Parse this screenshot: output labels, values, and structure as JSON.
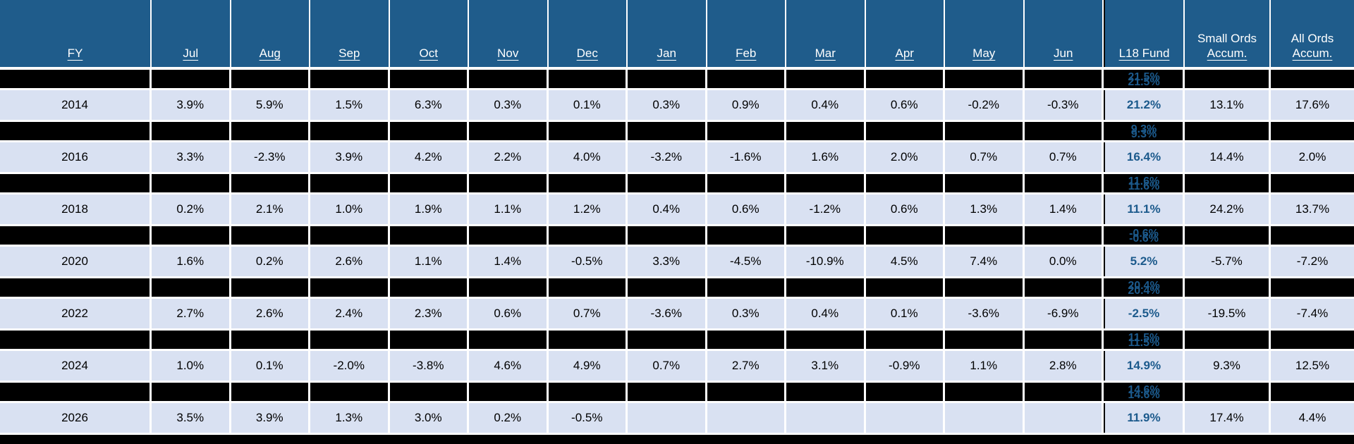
{
  "colors": {
    "header_bg": "#1F5C8B",
    "data_row_bg": "#D9E1F2",
    "accent_text": "#1C5A8C",
    "redaction": "#000000",
    "grid_gap": "#ffffff"
  },
  "chart_data": {
    "type": "table",
    "title": "",
    "columns": [
      {
        "id": "fy",
        "lines": [
          "FY"
        ]
      },
      {
        "id": "jul",
        "lines": [
          "Jul"
        ]
      },
      {
        "id": "aug",
        "lines": [
          "Aug"
        ]
      },
      {
        "id": "sep",
        "lines": [
          "Sep"
        ]
      },
      {
        "id": "oct",
        "lines": [
          "Oct"
        ]
      },
      {
        "id": "nov",
        "lines": [
          "Nov"
        ]
      },
      {
        "id": "dec",
        "lines": [
          "Dec"
        ]
      },
      {
        "id": "jan",
        "lines": [
          "Jan"
        ]
      },
      {
        "id": "feb",
        "lines": [
          "Feb"
        ]
      },
      {
        "id": "mar",
        "lines": [
          "Mar"
        ]
      },
      {
        "id": "apr",
        "lines": [
          "Apr"
        ]
      },
      {
        "id": "may",
        "lines": [
          "May"
        ]
      },
      {
        "id": "jun",
        "lines": [
          "Jun"
        ]
      },
      {
        "id": "l18",
        "lines": [
          "L18 Fund"
        ]
      },
      {
        "id": "small",
        "lines": [
          "Small Ords",
          "Accum."
        ]
      },
      {
        "id": "all",
        "lines": [
          "All Ords",
          "Accum."
        ]
      }
    ],
    "rows": [
      {
        "type": "redacted",
        "l18_obscured": "21.5%"
      },
      {
        "type": "data",
        "fy": "2014",
        "months": [
          "3.9%",
          "5.9%",
          "1.5%",
          "6.3%",
          "0.3%",
          "0.1%",
          "0.3%",
          "0.9%",
          "0.4%",
          "0.6%",
          "-0.2%",
          "-0.3%"
        ],
        "l18": "21.2%",
        "small_ords": "13.1%",
        "all_ords": "17.6%"
      },
      {
        "type": "redacted",
        "l18_obscured": "9.3%"
      },
      {
        "type": "data",
        "fy": "2016",
        "months": [
          "3.3%",
          "-2.3%",
          "3.9%",
          "4.2%",
          "2.2%",
          "4.0%",
          "-3.2%",
          "-1.6%",
          "1.6%",
          "2.0%",
          "0.7%",
          "0.7%"
        ],
        "l18": "16.4%",
        "small_ords": "14.4%",
        "all_ords": "2.0%"
      },
      {
        "type": "redacted",
        "l18_obscured": "11.6%"
      },
      {
        "type": "data",
        "fy": "2018",
        "months": [
          "0.2%",
          "2.1%",
          "1.0%",
          "1.9%",
          "1.1%",
          "1.2%",
          "0.4%",
          "0.6%",
          "-1.2%",
          "0.6%",
          "1.3%",
          "1.4%"
        ],
        "l18": "11.1%",
        "small_ords": "24.2%",
        "all_ords": "13.7%"
      },
      {
        "type": "redacted",
        "l18_obscured": "-0.6%"
      },
      {
        "type": "data",
        "fy": "2020",
        "months": [
          "1.6%",
          "0.2%",
          "2.6%",
          "1.1%",
          "1.4%",
          "-0.5%",
          "3.3%",
          "-4.5%",
          "-10.9%",
          "4.5%",
          "7.4%",
          "0.0%"
        ],
        "l18": "5.2%",
        "small_ords": "-5.7%",
        "all_ords": "-7.2%"
      },
      {
        "type": "redacted",
        "l18_obscured": "20.4%"
      },
      {
        "type": "data",
        "fy": "2022",
        "months": [
          "2.7%",
          "2.6%",
          "2.4%",
          "2.3%",
          "0.6%",
          "0.7%",
          "-3.6%",
          "0.3%",
          "0.4%",
          "0.1%",
          "-3.6%",
          "-6.9%"
        ],
        "l18": "-2.5%",
        "small_ords": "-19.5%",
        "all_ords": "-7.4%"
      },
      {
        "type": "redacted",
        "l18_obscured": "11.5%"
      },
      {
        "type": "data",
        "fy": "2024",
        "months": [
          "1.0%",
          "0.1%",
          "-2.0%",
          "-3.8%",
          "4.6%",
          "4.9%",
          "0.7%",
          "2.7%",
          "3.1%",
          "-0.9%",
          "1.1%",
          "2.8%"
        ],
        "l18": "14.9%",
        "small_ords": "9.3%",
        "all_ords": "12.5%"
      },
      {
        "type": "redacted",
        "l18_obscured": "14.6%"
      },
      {
        "type": "data",
        "fy": "2026",
        "months": [
          "3.5%",
          "3.9%",
          "1.3%",
          "3.0%",
          "0.2%",
          "-0.5%",
          "",
          "",
          "",
          "",
          "",
          ""
        ],
        "l18": "11.9%",
        "small_ords": "17.4%",
        "all_ords": "4.4%"
      }
    ]
  }
}
